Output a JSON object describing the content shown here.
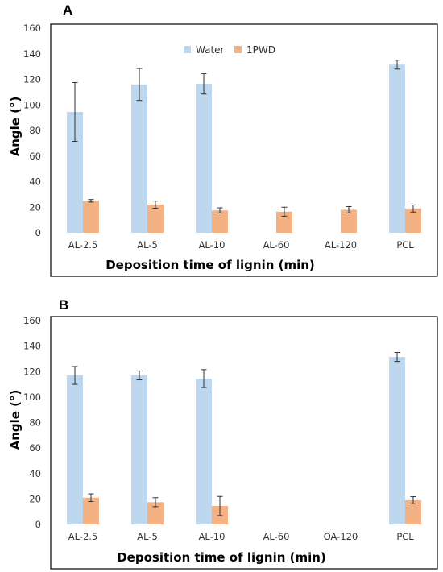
{
  "colors": {
    "water": "#bdd7ee",
    "pwd": "#f4b183",
    "error": "#333333",
    "frame": "#000000"
  },
  "chart_data": [
    {
      "type": "bar",
      "panel": "A",
      "categories": [
        "AL-2.5",
        "AL-5",
        "AL-10",
        "AL-60",
        "AL-120",
        "PCL"
      ],
      "series": [
        {
          "name": "Water",
          "values": [
            94.5,
            116,
            116.5,
            null,
            null,
            131.5
          ],
          "errors": [
            23,
            12.5,
            8,
            null,
            null,
            3.5
          ]
        },
        {
          "name": "1PWD",
          "values": [
            25,
            22,
            17.5,
            16.5,
            18,
            19
          ],
          "errors": [
            1,
            2.8,
            2,
            3.5,
            2.5,
            2.8
          ]
        }
      ],
      "xlabel": "Deposition time of lignin (min)",
      "ylabel": "Angle (°)",
      "ylim": [
        0,
        160
      ],
      "yticks": [
        "0",
        "20",
        "40",
        "60",
        "80",
        "100",
        "120",
        "140",
        "160"
      ],
      "legend": "top-center"
    },
    {
      "type": "bar",
      "panel": "B",
      "categories": [
        "AL-2.5",
        "AL-5",
        "AL-10",
        "AL-60",
        "OA-120",
        "PCL"
      ],
      "series": [
        {
          "name": "Water",
          "values": [
            117,
            117,
            114.5,
            null,
            null,
            131.5
          ],
          "errors": [
            7,
            3.5,
            7,
            null,
            null,
            3.5
          ]
        },
        {
          "name": "1PWD",
          "values": [
            21,
            17.5,
            14.5,
            null,
            null,
            19
          ],
          "errors": [
            3,
            3.5,
            7.5,
            null,
            null,
            2.8
          ]
        }
      ],
      "xlabel": "Deposition time of lignin (min)",
      "ylabel": "Angle (°)",
      "ylim": [
        0,
        160
      ],
      "yticks": [
        "0",
        "20",
        "40",
        "60",
        "80",
        "100",
        "120",
        "140",
        "160"
      ],
      "legend": "none"
    }
  ]
}
